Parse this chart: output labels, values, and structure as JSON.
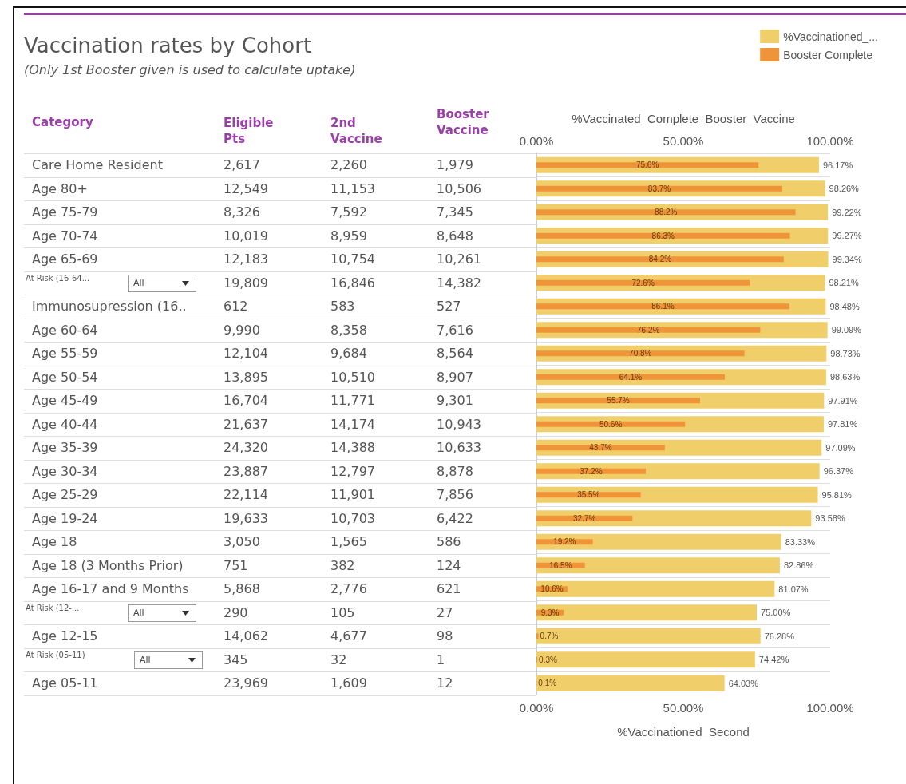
{
  "chart_data": [
    {
      "type": "other",
      "title": "Vaccination rates by Cohort",
      "subtitle": "(Only 1st Booster given is used to calculate uptake)",
      "ylabel": "Category",
      "categories": [
        "Care Home Resident",
        "Age 80+",
        "Age 75-79",
        "Age 70-74",
        "Age 65-69",
        "At Risk (16-64...",
        "Immunosupression (16..",
        "Age 60-64",
        "Age 55-59",
        "Age 50-54",
        "Age 45-49",
        "Age 40-44",
        "Age 35-39",
        "Age 30-34",
        "Age 25-29",
        "Age 19-24",
        "Age 18",
        "Age 18 (3 Months Prior)",
        "Age 16-17 and 9 Months",
        "At Risk (12-...",
        "Age 12-15",
        "At Risk (05-11)",
        "Age 05-11"
      ],
      "series": [
        {
          "name": "Eligible Pts",
          "color": "#9b3fa8",
          "values": [
            2617,
            12549,
            8326,
            10019,
            12183,
            19809,
            612,
            9990,
            12104,
            13895,
            16704,
            21637,
            24320,
            23887,
            22114,
            19633,
            3050,
            751,
            5868,
            290,
            14062,
            345,
            23969
          ],
          "value_labels": [
            "2,617",
            "12,549",
            "8,326",
            "10,019",
            "12,183",
            "19,809",
            "612",
            "9,990",
            "12,104",
            "13,895",
            "16,704",
            "21,637",
            "24,320",
            "23,887",
            "22,114",
            "19,633",
            "3,050",
            "751",
            "5,868",
            "290",
            "14,062",
            "345",
            "23,969"
          ]
        },
        {
          "name": "2nd Vaccine",
          "color": "#9b3fa8",
          "values": [
            2260,
            11153,
            7592,
            8959,
            10754,
            16846,
            583,
            8358,
            9684,
            10510,
            11771,
            14174,
            14388,
            12797,
            11901,
            10703,
            1565,
            382,
            2776,
            105,
            4677,
            32,
            1609
          ],
          "value_labels": [
            "2,260",
            "11,153",
            "7,592",
            "8,959",
            "10,754",
            "16,846",
            "583",
            "8,358",
            "9,684",
            "10,510",
            "11,771",
            "14,174",
            "14,388",
            "12,797",
            "11,901",
            "10,703",
            "1,565",
            "382",
            "2,776",
            "105",
            "4,677",
            "32",
            "1,609"
          ]
        },
        {
          "name": "Booster Vaccine",
          "color": "#9b3fa8",
          "values": [
            1979,
            10506,
            7345,
            8648,
            10261,
            14382,
            527,
            7616,
            8564,
            8907,
            9301,
            10943,
            10633,
            8878,
            7856,
            6422,
            586,
            124,
            621,
            27,
            98,
            1,
            12
          ],
          "value_labels": [
            "1,979",
            "10,506",
            "7,345",
            "8,648",
            "10,261",
            "14,382",
            "527",
            "7,616",
            "8,564",
            "8,907",
            "9,301",
            "10,943",
            "10,633",
            "8,878",
            "7,856",
            "6,422",
            "586",
            "124",
            "621",
            "27",
            "98",
            "1",
            "12"
          ]
        }
      ],
      "annotations": [
        {
          "text": "All",
          "y": "At Risk (16-64..."
        },
        {
          "text": "All",
          "y": "At Risk (12-..."
        },
        {
          "text": "All",
          "y": "At Risk (05-11)"
        }
      ]
    },
    {
      "type": "bar",
      "orientation": "horizontal",
      "legend": "top right",
      "grid": "y",
      "tick_labels": "x",
      "categories": [
        "Care Home Resident",
        "Age 80+",
        "Age 75-79",
        "Age 70-74",
        "Age 65-69",
        "At Risk (16-64...",
        "Immunosupression (16..",
        "Age 60-64",
        "Age 55-59",
        "Age 50-54",
        "Age 45-49",
        "Age 40-44",
        "Age 35-39",
        "Age 30-34",
        "Age 25-29",
        "Age 19-24",
        "Age 18",
        "Age 18 (3 Months Prior)",
        "Age 16-17 and 9 Months",
        "At Risk (12-...",
        "Age 12-15",
        "At Risk (05-11)",
        "Age 05-11"
      ],
      "xlabel": "%Vaccinationed_Second",
      "x2label": "%Vaccinated_Complete_Booster_Vaccine",
      "xlim": [
        0,
        100
      ],
      "xticks": [
        {
          "value": 0,
          "label": "0.00%"
        },
        {
          "value": 50,
          "label": "50.00%"
        },
        {
          "value": 100,
          "label": "100.00%"
        }
      ],
      "x2lim": [
        0,
        100
      ],
      "x2ticks": [
        {
          "value": 0,
          "label": "0.00%"
        },
        {
          "value": 50,
          "label": "50.00%"
        },
        {
          "value": 100,
          "label": "100.00%"
        }
      ],
      "series": [
        {
          "name": "%Vaccinationed_...",
          "color": "#f0cf6a",
          "values": [
            96.17,
            98.26,
            99.22,
            99.27,
            99.34,
            98.21,
            98.48,
            99.09,
            98.73,
            98.63,
            97.91,
            97.81,
            97.09,
            96.37,
            95.81,
            93.58,
            83.33,
            82.86,
            81.07,
            75.0,
            76.28,
            74.42,
            64.03
          ],
          "value_labels": [
            "96.17%",
            "98.26%",
            "99.22%",
            "99.27%",
            "99.34%",
            "98.21%",
            "98.48%",
            "99.09%",
            "98.73%",
            "98.63%",
            "97.91%",
            "97.81%",
            "97.09%",
            "96.37%",
            "95.81%",
            "93.58%",
            "83.33%",
            "82.86%",
            "81.07%",
            "75.00%",
            "76.28%",
            "74.42%",
            "64.03%"
          ]
        },
        {
          "name": "Booster Complete",
          "color": "#f0943a",
          "axis": "x2",
          "values": [
            75.6,
            83.7,
            88.2,
            86.3,
            84.2,
            72.6,
            86.1,
            76.2,
            70.8,
            64.1,
            55.7,
            50.6,
            43.7,
            37.2,
            35.5,
            32.7,
            19.2,
            16.5,
            10.6,
            9.3,
            0.7,
            0.3,
            0.1
          ],
          "value_labels": [
            "75.6%",
            "83.7%",
            "88.2%",
            "86.3%",
            "84.2%",
            "72.6%",
            "86.1%",
            "76.2%",
            "70.8%",
            "64.1%",
            "55.7%",
            "50.6%",
            "43.7%",
            "37.2%",
            "35.5%",
            "32.7%",
            "19.2%",
            "16.5%",
            "10.6%",
            "9.3%",
            "0.7%",
            "0.3%",
            "0.1%"
          ]
        }
      ]
    }
  ]
}
